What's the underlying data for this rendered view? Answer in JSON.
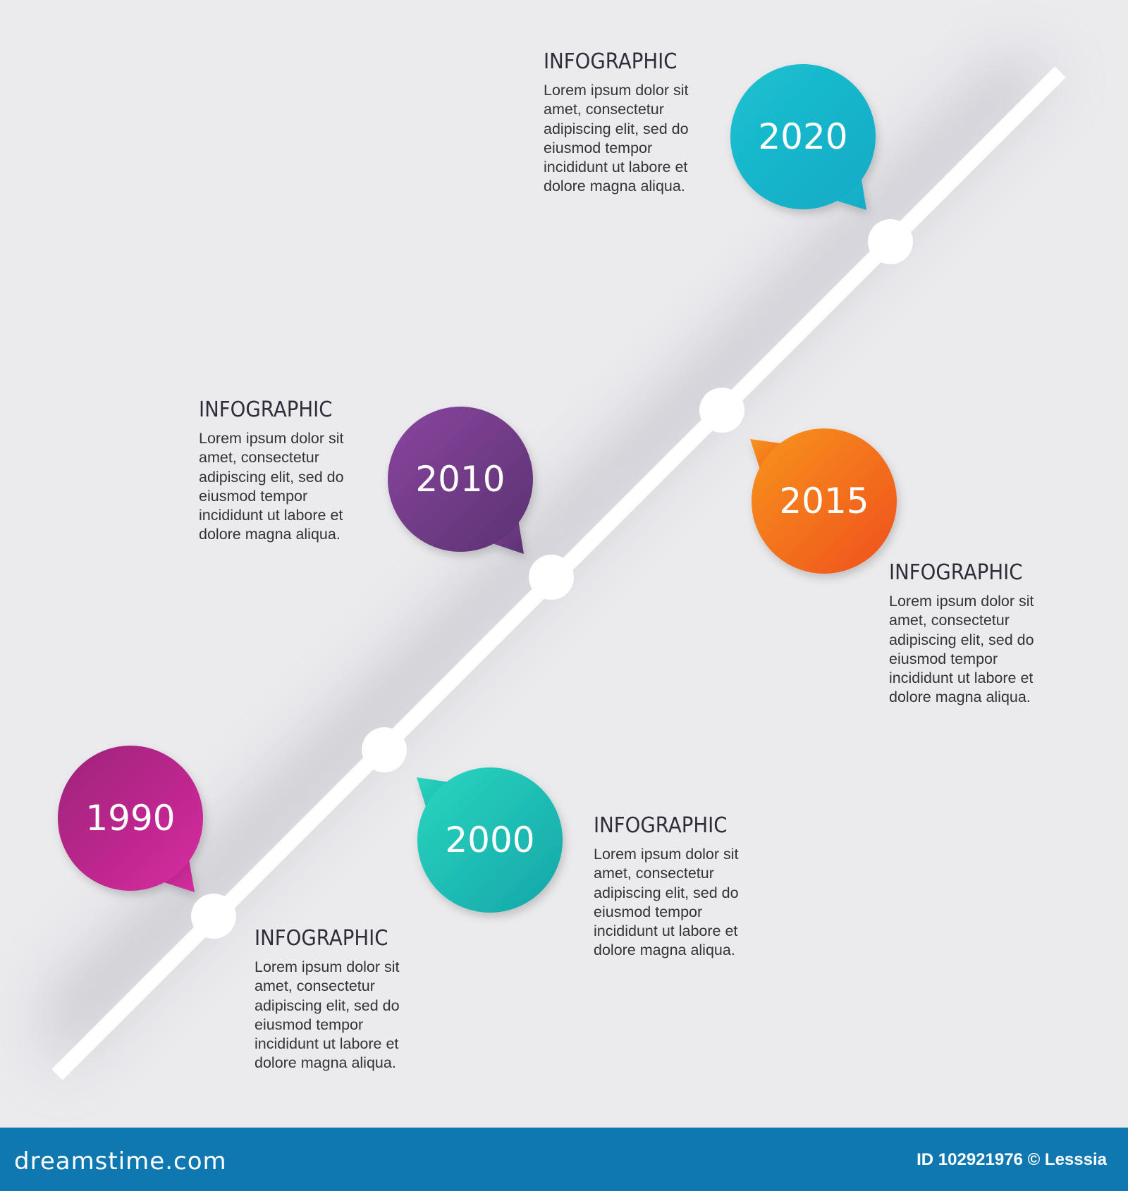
{
  "background_color": "#ebebee",
  "timeline": {
    "line_color": "#ffffff",
    "items": [
      {
        "year": "1990",
        "title": "INFOGRAPHIC",
        "body": "Lorem ipsum dolor sit\namet, consectetur\nadipiscing elit, sed do\neiusmod tempor\nincididunt ut labore et\ndolore magna aliqua.",
        "colors": [
          "#9c2378",
          "#d82ba0"
        ]
      },
      {
        "year": "2000",
        "title": "INFOGRAPHIC",
        "body": "Lorem ipsum dolor sit\namet, consectetur\nadipiscing elit, sed do\neiusmod tempor\nincididunt ut labore et\ndolore magna aliqua.",
        "colors": [
          "#2ad6c0",
          "#14a6a8"
        ]
      },
      {
        "year": "2010",
        "title": "INFOGRAPHIC",
        "body": "Lorem ipsum dolor sit\namet, consectetur\nadipiscing elit, sed do\neiusmod tempor\nincididunt ut labore et\ndolore magna aliqua.",
        "colors": [
          "#8a45a0",
          "#5a3270"
        ]
      },
      {
        "year": "2015",
        "title": "INFOGRAPHIC",
        "body": "Lorem ipsum dolor sit\namet, consectetur\nadipiscing elit, sed do\neiusmod tempor\nincididunt ut labore et\ndolore magna aliqua.",
        "colors": [
          "#f8951e",
          "#ef4f1c"
        ]
      },
      {
        "year": "2020",
        "title": "INFOGRAPHIC",
        "body": "Lorem ipsum dolor sit\namet, consectetur\nadipiscing elit, sed do\neiusmod tempor\nincididunt ut labore et\ndolore magna aliqua.",
        "colors": [
          "#1cc2d0",
          "#13a9c6"
        ]
      }
    ]
  },
  "footer": {
    "logo": "dreamstime.com",
    "credit": "ID 102921976 © Lesssia",
    "color": "#0f78b0"
  }
}
